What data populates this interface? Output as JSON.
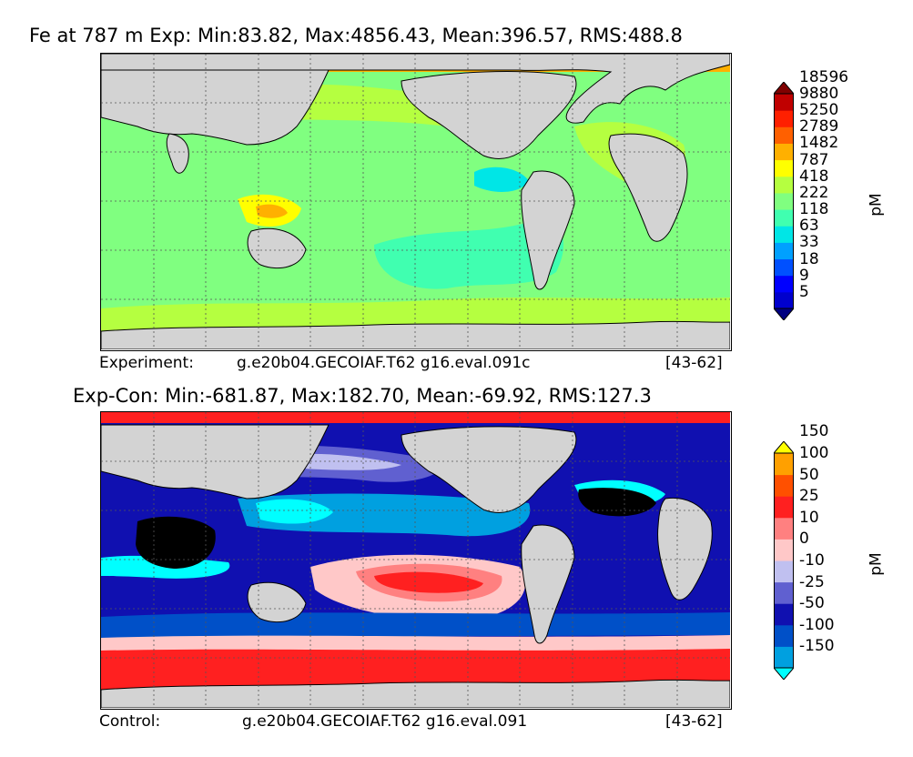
{
  "panels": [
    {
      "title": "Fe at 787 m Exp: Min:83.82, Max:4856.43, Mean:396.57, RMS:488.8",
      "footer_label": "Experiment:",
      "footer_case": "g.e20b04.GECOIAF.T62 g16.eval.091c",
      "footer_years": "[43-62]",
      "colorbar": {
        "unit": "pM",
        "levels": [
          "5",
          "9",
          "18",
          "33",
          "63",
          "118",
          "222",
          "418",
          "787",
          "1482",
          "2789",
          "5250",
          "9880",
          "18596"
        ],
        "colors": [
          "#000080",
          "#0000cd",
          "#0000ff",
          "#0050ff",
          "#00a0ff",
          "#00e6e6",
          "#40ffb0",
          "#80ff80",
          "#b5ff40",
          "#ffff00",
          "#ffb000",
          "#ff6000",
          "#ff2000",
          "#c00000",
          "#800000"
        ],
        "extend": "both"
      }
    },
    {
      "title": "Exp-Con: Min:-681.87, Max:182.70, Mean:-69.92, RMS:127.3",
      "footer_label": "Control:",
      "footer_case": "g.e20b04.GECOIAF.T62 g16.eval.091",
      "footer_years": "[43-62]",
      "colorbar": {
        "unit": "pM",
        "levels": [
          "-150",
          "-100",
          "-50",
          "-25",
          "-10",
          "0",
          "10",
          "25",
          "50",
          "100",
          "150"
        ],
        "colors": [
          "#00ffff",
          "#00a0e0",
          "#0050c8",
          "#1010b0",
          "#6060d0",
          "#c0c0f0",
          "#ffc8c8",
          "#ff8080",
          "#ff2020",
          "#ff5000",
          "#ffa000",
          "#ffff00"
        ],
        "extend": "both"
      }
    }
  ],
  "colors": {
    "land": "#d3d3d3",
    "missing": "#ffffff",
    "grid": "#555555"
  }
}
